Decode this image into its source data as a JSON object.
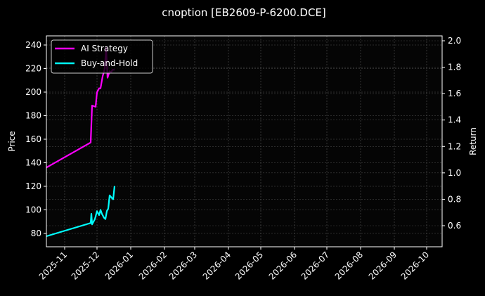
{
  "chart_data": {
    "type": "line",
    "title": "cnoption [EB2609-P-6200.DCE]",
    "xlabel": "",
    "ylabel": "Price",
    "ylabel_right": "Return",
    "x_ticks": [
      "2025-11",
      "2025-12",
      "2026-01",
      "2026-02",
      "2026-03",
      "2026-04",
      "2026-05",
      "2026-06",
      "2026-07",
      "2026-08",
      "2026-09",
      "2026-10"
    ],
    "y_ticks_left": [
      80,
      100,
      120,
      140,
      160,
      180,
      200,
      220,
      240
    ],
    "y_ticks_right": [
      0.6,
      0.8,
      1.0,
      1.2,
      1.4,
      1.6,
      1.8,
      2.0
    ],
    "ylim_left": [
      68,
      248
    ],
    "ylim_right": [
      0.45,
      2.04
    ],
    "grid": true,
    "legend_position": "upper left",
    "series": [
      {
        "name": "AI Strategy",
        "color": "#ff00ff",
        "axis": "right",
        "x": [
          "2025-10-15",
          "2025-11-26",
          "2025-11-27",
          "2025-12-01",
          "2025-12-02",
          "2025-12-04",
          "2025-12-05",
          "2025-12-07",
          "2025-12-09",
          "2025-12-10",
          "2025-12-11",
          "2025-12-13",
          "2025-12-14",
          "2025-12-16",
          "2025-12-17"
        ],
        "values": [
          1.04,
          1.23,
          1.51,
          1.5,
          1.61,
          1.64,
          1.64,
          1.73,
          1.79,
          1.95,
          1.72,
          1.77,
          1.76,
          1.78,
          1.78
        ]
      },
      {
        "name": "Buy-and-Hold",
        "color": "#00ffff",
        "axis": "right",
        "x": [
          "2025-10-15",
          "2025-11-26",
          "2025-11-26b",
          "2025-11-27",
          "2025-11-28",
          "2025-11-30",
          "2025-12-01",
          "2025-12-03",
          "2025-12-04",
          "2025-12-06",
          "2025-12-07",
          "2025-12-09",
          "2025-12-10",
          "2025-12-11",
          "2025-12-13",
          "2025-12-14",
          "2025-12-16",
          "2025-12-17"
        ],
        "values": [
          0.52,
          0.62,
          0.69,
          0.61,
          0.63,
          0.65,
          0.71,
          0.68,
          0.72,
          0.69,
          0.66,
          0.65,
          0.71,
          0.73,
          0.83,
          0.81,
          0.8,
          0.9
        ]
      }
    ]
  },
  "legend": {
    "items": [
      {
        "label": "AI Strategy",
        "color": "#ff00ff"
      },
      {
        "label": "Buy-and-Hold",
        "color": "#00ffff"
      }
    ]
  }
}
